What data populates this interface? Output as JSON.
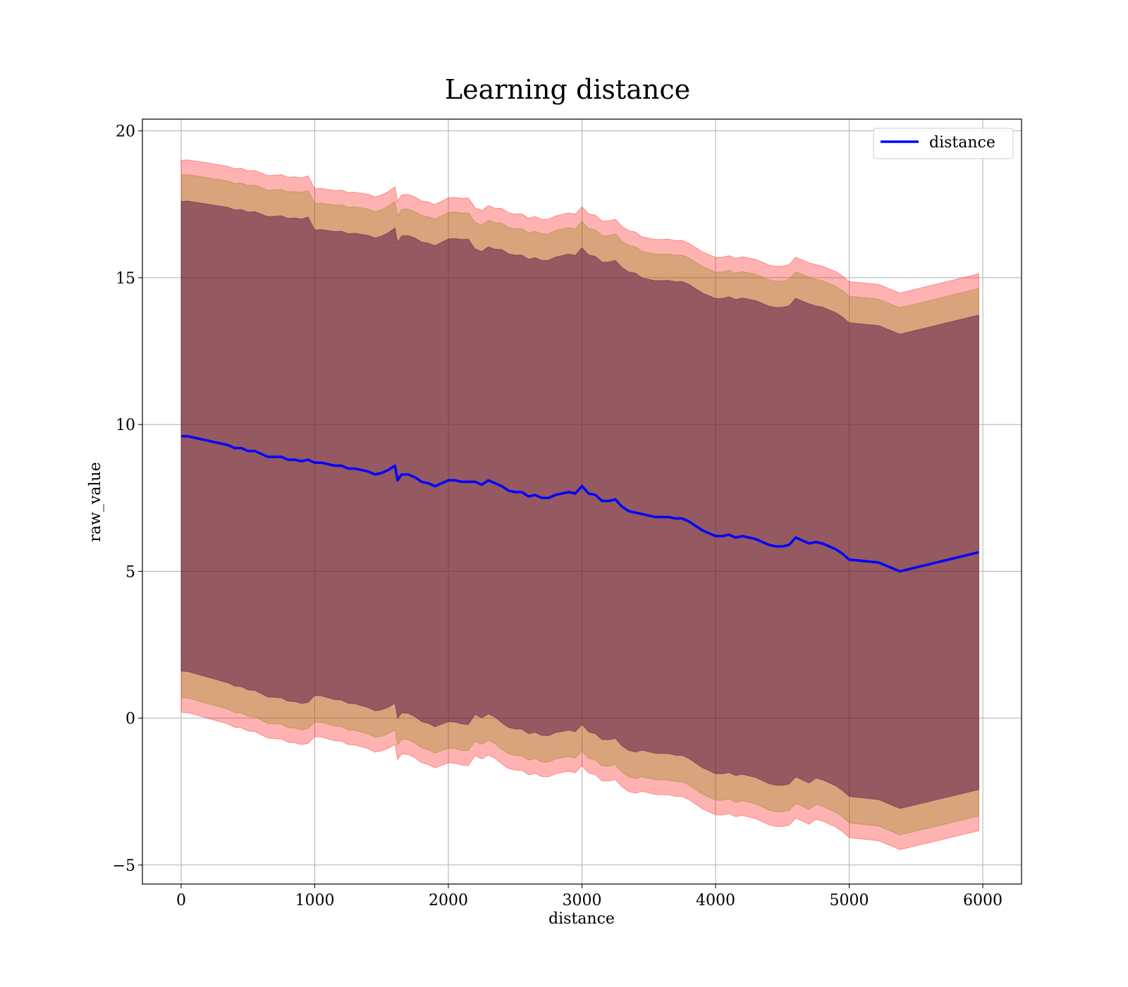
{
  "chart_data": {
    "type": "line",
    "title": "Learning distance",
    "xlabel": "distance",
    "ylabel": "raw_value",
    "xlim": [
      -290,
      6290
    ],
    "ylim": [
      -5.65,
      20.4
    ],
    "xticks": [
      0,
      1000,
      2000,
      3000,
      4000,
      5000,
      6000
    ],
    "xtick_labels": [
      "0",
      "1000",
      "2000",
      "3000",
      "4000",
      "5000",
      "6000"
    ],
    "yticks": [
      -5,
      0,
      5,
      10,
      15,
      20
    ],
    "ytick_labels": [
      "−5",
      "0",
      "5",
      "10",
      "15",
      "20"
    ],
    "grid": true,
    "legend": {
      "position": "top-right",
      "entries": [
        "distance"
      ]
    },
    "colors": {
      "line": "#0000ff",
      "outer_band": "#ff0000",
      "middle_band": "#808000",
      "inner_band": "#400040",
      "grid": "#b0b0b0"
    },
    "series": [
      {
        "name": "distance",
        "x": [
          0,
          50,
          100,
          150,
          200,
          250,
          300,
          350,
          400,
          450,
          500,
          550,
          600,
          650,
          700,
          750,
          800,
          850,
          900,
          950,
          1000,
          1050,
          1100,
          1150,
          1200,
          1250,
          1300,
          1350,
          1400,
          1450,
          1500,
          1550,
          1600,
          1620,
          1650,
          1700,
          1750,
          1800,
          1850,
          1900,
          1950,
          2000,
          2050,
          2100,
          2150,
          2200,
          2250,
          2300,
          2350,
          2400,
          2450,
          2500,
          2550,
          2600,
          2650,
          2700,
          2750,
          2800,
          2850,
          2900,
          2950,
          3000,
          3050,
          3100,
          3150,
          3200,
          3250,
          3300,
          3350,
          3400,
          3450,
          3500,
          3550,
          3600,
          3650,
          3700,
          3750,
          3800,
          3850,
          3900,
          3950,
          4000,
          4050,
          4100,
          4150,
          4200,
          4250,
          4300,
          4350,
          4400,
          4450,
          4500,
          4550,
          4600,
          4650,
          4700,
          4750,
          4800,
          4850,
          4900,
          4950,
          5000,
          5220,
          5380,
          5970
        ],
        "y": [
          9.6,
          9.6,
          9.55,
          9.5,
          9.45,
          9.4,
          9.35,
          9.3,
          9.2,
          9.2,
          9.1,
          9.1,
          9.0,
          8.9,
          8.9,
          8.9,
          8.8,
          8.8,
          8.75,
          8.8,
          8.7,
          8.7,
          8.65,
          8.6,
          8.6,
          8.5,
          8.5,
          8.45,
          8.4,
          8.3,
          8.35,
          8.45,
          8.6,
          8.1,
          8.3,
          8.3,
          8.2,
          8.05,
          8.0,
          7.9,
          8.0,
          8.1,
          8.1,
          8.05,
          8.05,
          8.05,
          7.95,
          8.1,
          8.0,
          7.9,
          7.75,
          7.7,
          7.7,
          7.55,
          7.6,
          7.5,
          7.5,
          7.6,
          7.65,
          7.7,
          7.65,
          7.9,
          7.65,
          7.6,
          7.4,
          7.4,
          7.45,
          7.2,
          7.05,
          7.0,
          6.95,
          6.9,
          6.85,
          6.85,
          6.85,
          6.8,
          6.8,
          6.7,
          6.55,
          6.4,
          6.3,
          6.2,
          6.2,
          6.25,
          6.15,
          6.2,
          6.15,
          6.1,
          6.0,
          5.9,
          5.85,
          5.85,
          5.9,
          6.15,
          6.05,
          5.95,
          6.0,
          5.95,
          5.85,
          5.75,
          5.6,
          5.4,
          5.3,
          5.0,
          5.65
        ]
      }
    ],
    "bands": {
      "inner_halfwidth_start": 8.1,
      "inner_halfwidth_end": 8.1,
      "middle_halfwidth_start": 9.0,
      "middle_halfwidth_end": 9.0,
      "outer_halfwidth_start": 9.5,
      "outer_halfwidth_end": 9.5
    }
  }
}
